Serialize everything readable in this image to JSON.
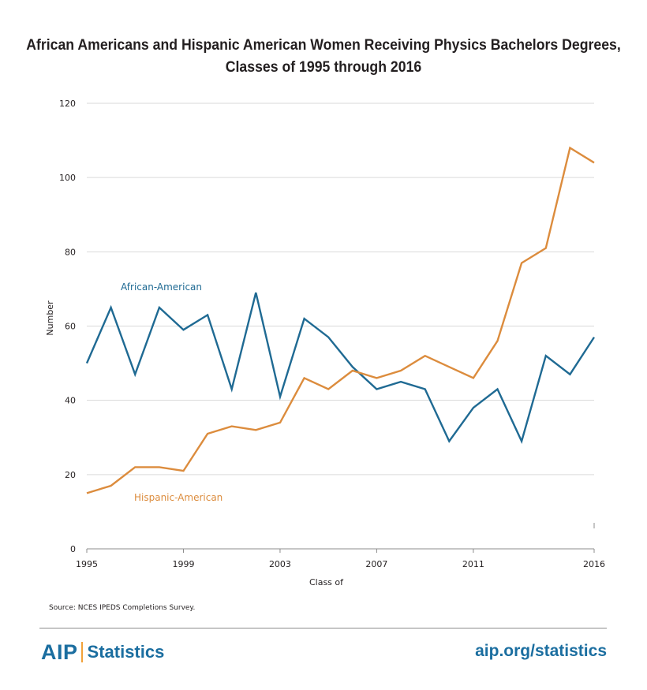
{
  "chart_data": {
    "type": "line",
    "title_lines": [
      "African Americans and Hispanic American Women Receiving Physics Bachelors Degrees,",
      "Classes of 1995 through 2016"
    ],
    "xlabel": "Class of",
    "ylabel": "Number",
    "x": [
      1995,
      1996,
      1997,
      1998,
      1999,
      2000,
      2001,
      2002,
      2003,
      2004,
      2005,
      2006,
      2007,
      2008,
      2009,
      2010,
      2011,
      2012,
      2013,
      2014,
      2015,
      2016
    ],
    "x_ticks": [
      "1995",
      "1999",
      "2003",
      "2007",
      "2011",
      "2016"
    ],
    "y_ticks": [
      "0",
      "20",
      "40",
      "60",
      "80",
      "100",
      "120"
    ],
    "ylim": [
      0,
      120
    ],
    "xlim": [
      1995,
      2016
    ],
    "grid": true,
    "series": [
      {
        "name": "African-American",
        "color": "#1f6a93",
        "values": [
          50,
          65,
          47,
          65,
          59,
          63,
          43,
          69,
          41,
          62,
          57,
          49,
          43,
          45,
          43,
          29,
          38,
          43,
          29,
          52,
          47,
          57
        ]
      },
      {
        "name": "Hispanic-American",
        "color": "#dc8c3d",
        "values": [
          15,
          17,
          22,
          22,
          21,
          31,
          33,
          32,
          34,
          46,
          43,
          48,
          46,
          48,
          52,
          49,
          46,
          56,
          77,
          81,
          108,
          104
        ]
      }
    ]
  },
  "source": "Source: NCES IPEDS Completions Survey.",
  "footer": {
    "brand_aip": "AIP",
    "brand_statistics": "Statistics",
    "url": "aip.org/statistics"
  },
  "colors": {
    "brand": "#1b6ea0",
    "brand_accent": "#f2a23a",
    "grid": "#d9d9d9",
    "axis": "#8c8c8c"
  }
}
